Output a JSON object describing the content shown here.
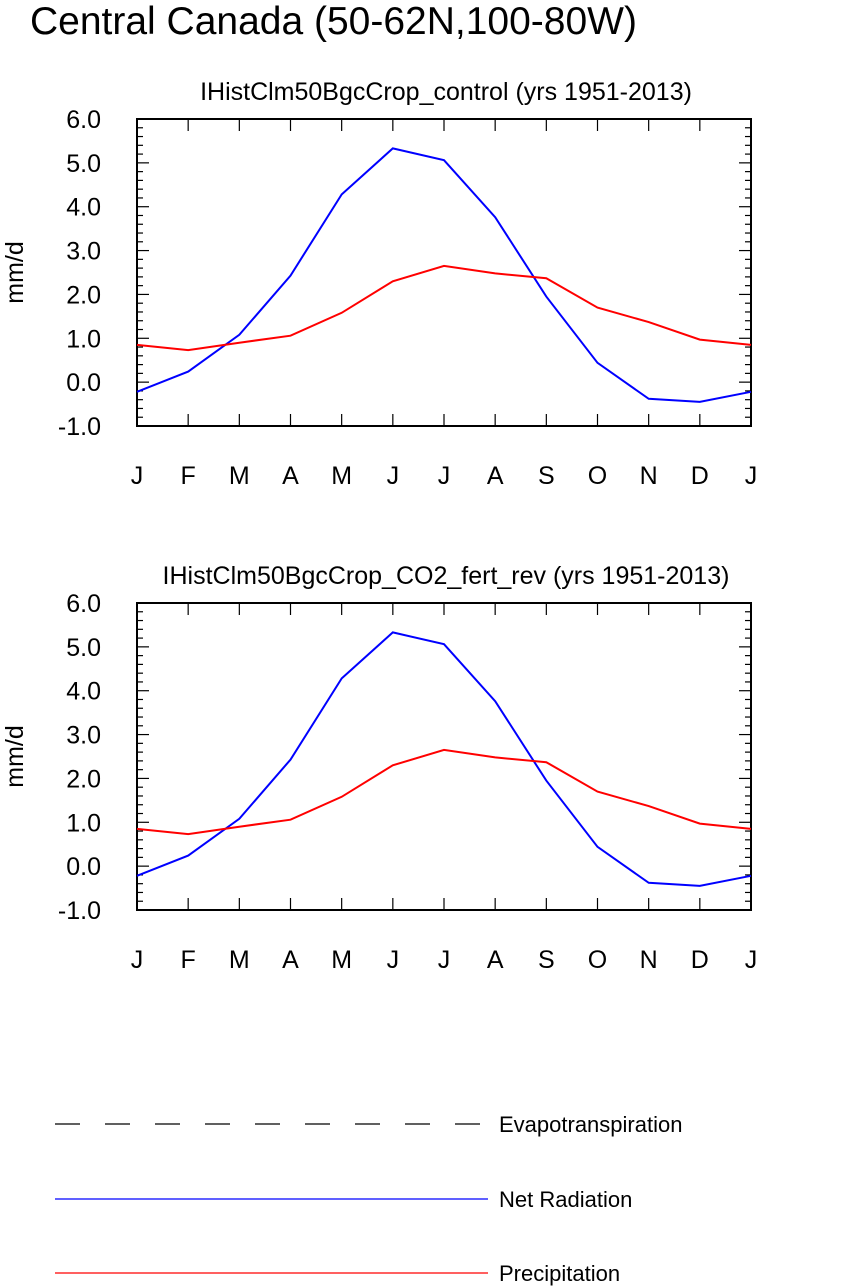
{
  "title": "Central Canada (50-62N,100-80W)",
  "colors": {
    "evapotranspiration": "#000000",
    "net_radiation": "#0000ff",
    "precipitation": "#ff0000",
    "axes": "#000000"
  },
  "chart_data": [
    {
      "type": "line",
      "title": "IHistClm50BgcCrop_control (yrs 1951-2013)",
      "ylabel": "mm/d",
      "xlabel": "",
      "ylim": [
        -1.0,
        6.0
      ],
      "yticks": [
        "-1.0",
        "0.0",
        "1.0",
        "2.0",
        "3.0",
        "4.0",
        "5.0",
        "6.0"
      ],
      "categories": [
        "J",
        "F",
        "M",
        "A",
        "M",
        "J",
        "J",
        "A",
        "S",
        "O",
        "N",
        "D",
        "J"
      ],
      "grid": false,
      "series": [
        {
          "name": "Net Radiation",
          "color": "#0000ff",
          "values": [
            -0.22,
            0.24,
            1.08,
            2.43,
            4.28,
            5.33,
            5.06,
            3.76,
            1.95,
            0.44,
            -0.38,
            -0.45,
            -0.22
          ]
        },
        {
          "name": "Precipitation",
          "color": "#ff0000",
          "values": [
            0.85,
            0.73,
            0.9,
            1.06,
            1.58,
            2.3,
            2.65,
            2.48,
            2.37,
            1.7,
            1.37,
            0.97,
            0.85
          ]
        }
      ]
    },
    {
      "type": "line",
      "title": "IHistClm50BgcCrop_CO2_fert_rev (yrs 1951-2013)",
      "ylabel": "mm/d",
      "xlabel": "",
      "ylim": [
        -1.0,
        6.0
      ],
      "yticks": [
        "-1.0",
        "0.0",
        "1.0",
        "2.0",
        "3.0",
        "4.0",
        "5.0",
        "6.0"
      ],
      "categories": [
        "J",
        "F",
        "M",
        "A",
        "M",
        "J",
        "J",
        "A",
        "S",
        "O",
        "N",
        "D",
        "J"
      ],
      "grid": false,
      "series": [
        {
          "name": "Net Radiation",
          "color": "#0000ff",
          "values": [
            -0.22,
            0.24,
            1.08,
            2.43,
            4.28,
            5.33,
            5.06,
            3.76,
            1.95,
            0.44,
            -0.38,
            -0.45,
            -0.22
          ]
        },
        {
          "name": "Precipitation",
          "color": "#ff0000",
          "values": [
            0.85,
            0.73,
            0.9,
            1.06,
            1.58,
            2.3,
            2.65,
            2.48,
            2.37,
            1.7,
            1.37,
            0.97,
            0.85
          ]
        }
      ]
    }
  ],
  "legend": {
    "placement": "bottom",
    "items": [
      {
        "label": "Evapotranspiration",
        "color": "#000000",
        "style": "dashed"
      },
      {
        "label": "Net Radiation",
        "color": "#0000ff",
        "style": "solid"
      },
      {
        "label": "Precipitation",
        "color": "#ff0000",
        "style": "solid"
      }
    ]
  }
}
